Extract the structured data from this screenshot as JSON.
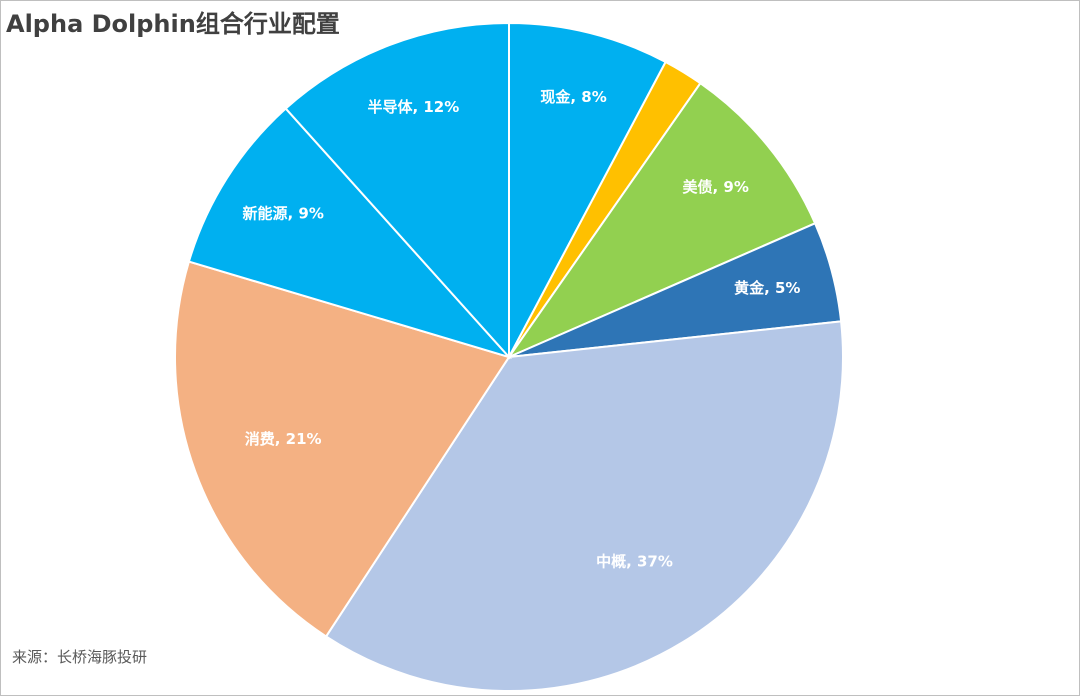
{
  "chart_data": {
    "type": "pie",
    "title": "Alpha Dolphin组合行业配置",
    "categories": [
      "现金",
      null,
      "美债",
      "黄金",
      "中概",
      "消费",
      "新能源",
      "半导体"
    ],
    "values": [
      8,
      2,
      9,
      5,
      37,
      21,
      9,
      12
    ],
    "value_labels": [
      "现金, 8%",
      null,
      "美债, 9%",
      "黄金, 5%",
      "中概, 37%",
      "消费, 21%",
      "新能源, 9%",
      "半导体, 12%"
    ],
    "colors": [
      "#00b0f0",
      "#ffc000",
      "#92d050",
      "#2e75b6",
      "#b4c7e7",
      "#f4b183",
      "#00b0f0",
      "#00b0f0"
    ],
    "source": "来源：长桥海豚投研"
  }
}
